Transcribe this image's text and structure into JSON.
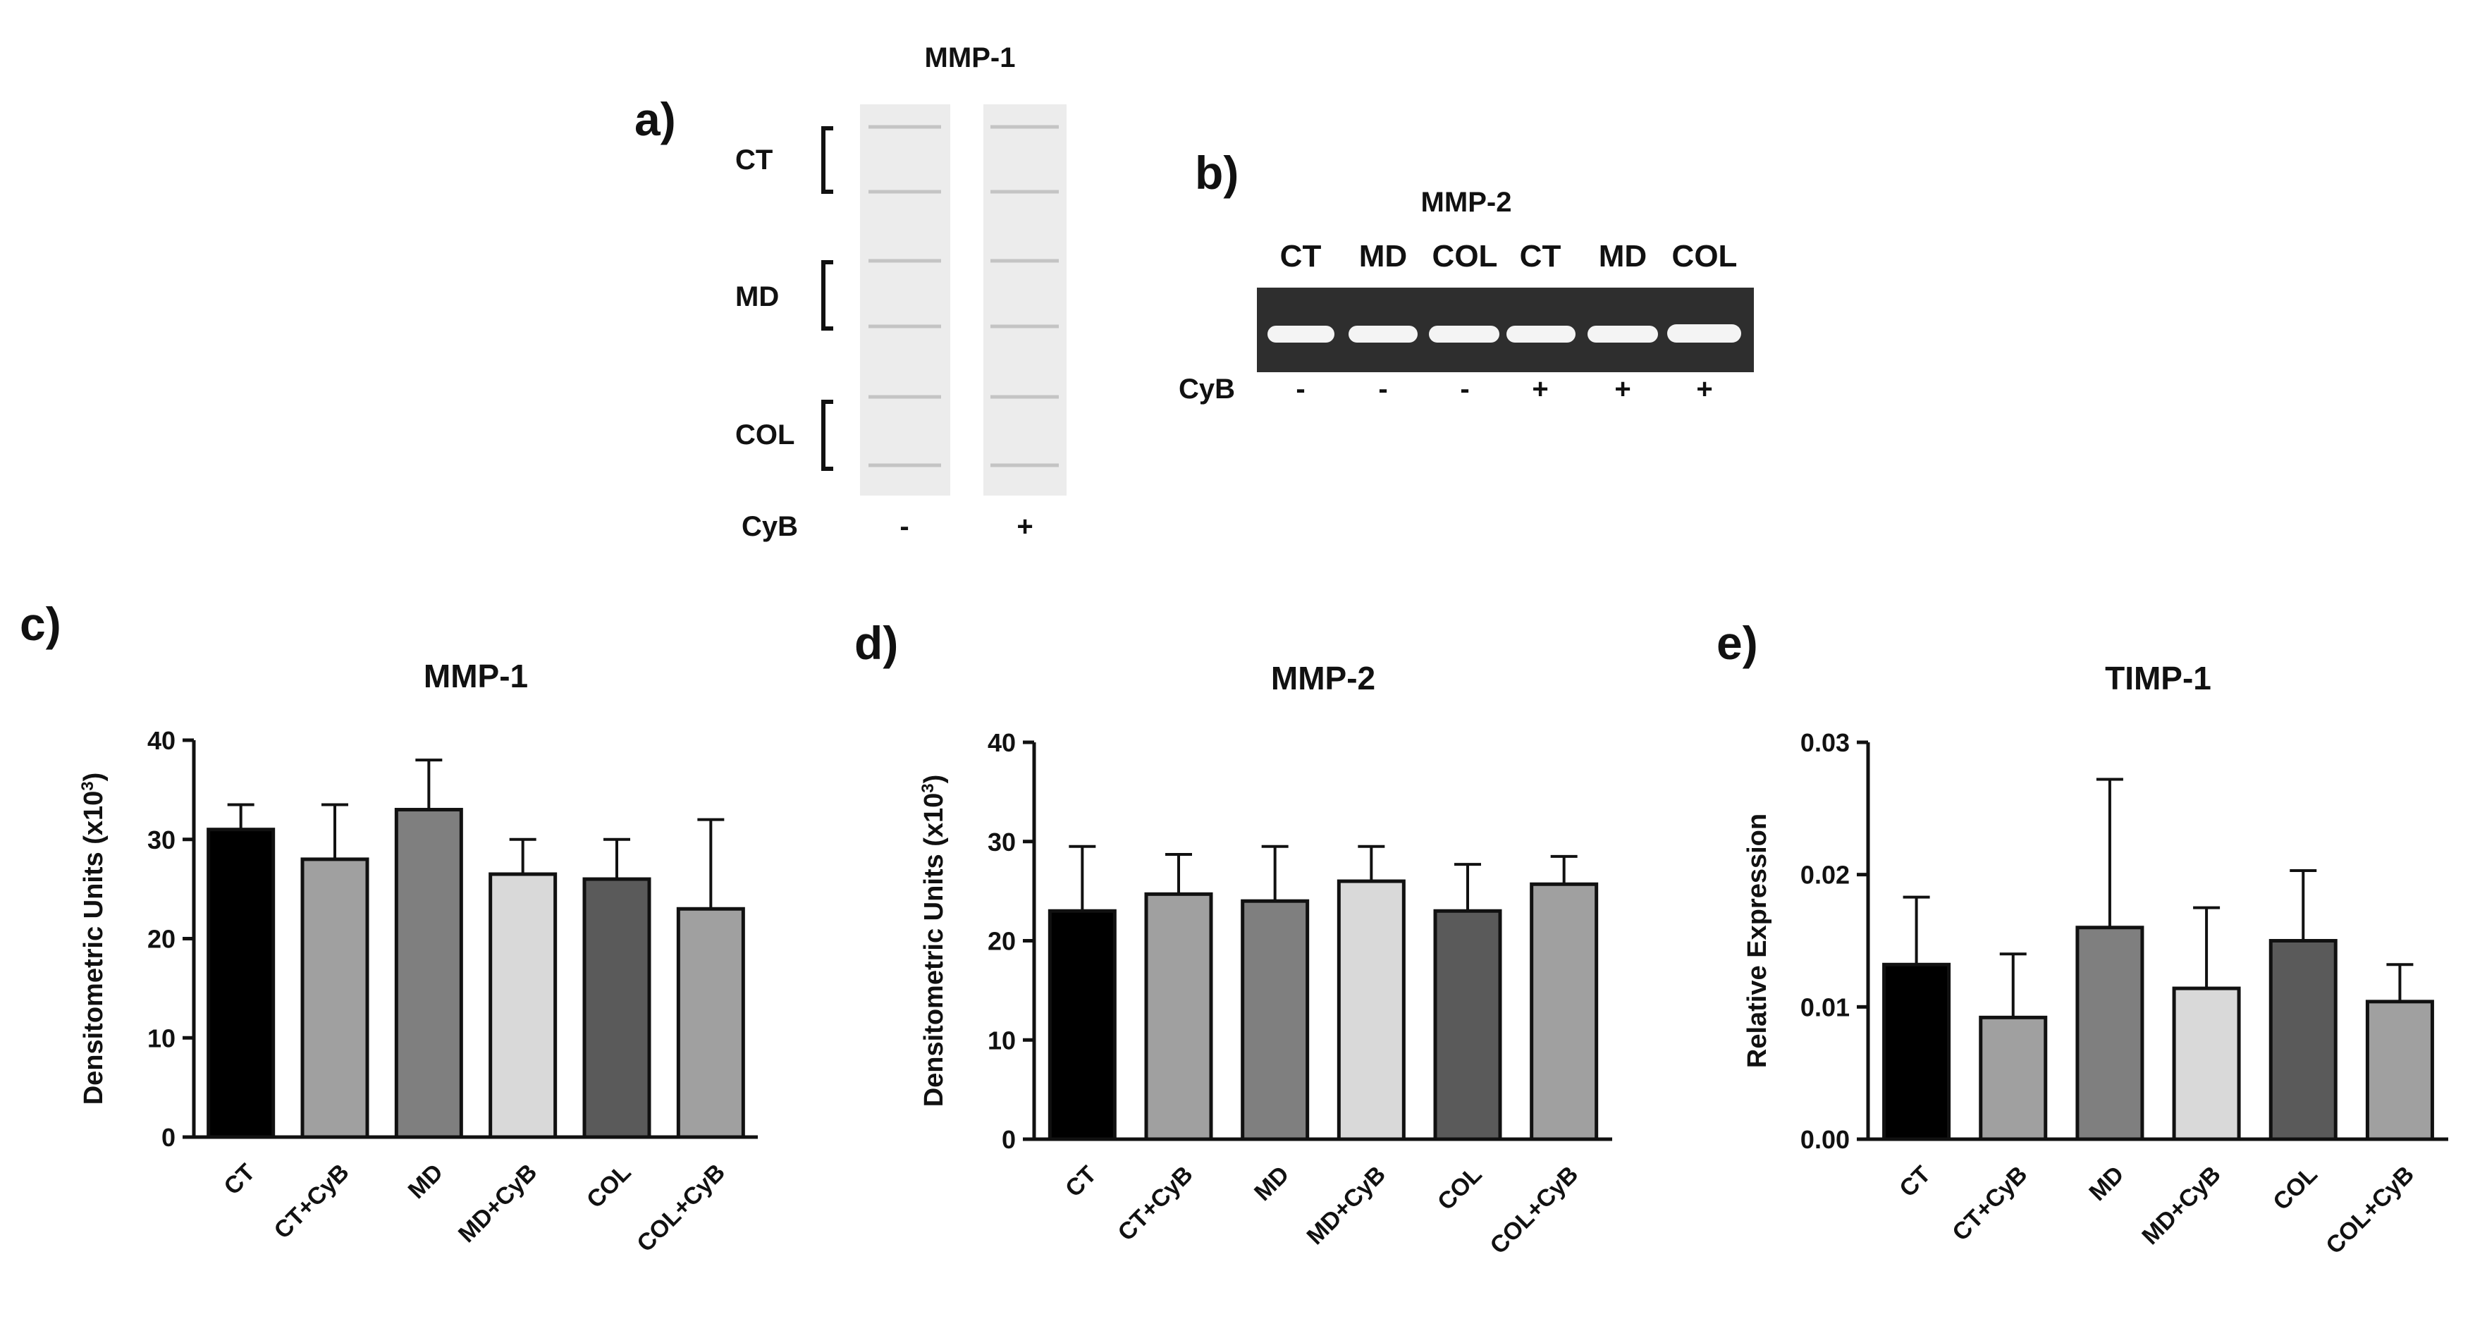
{
  "figure": {
    "panels": {
      "a": "a)",
      "b": "b)",
      "c": "c)",
      "d": "d)",
      "e": "e)"
    }
  },
  "gel_a": {
    "title": "MMP-1",
    "groups": [
      "CT",
      "MD",
      "COL"
    ],
    "cyb_label": "CyB",
    "cyb_values": [
      "-",
      "+"
    ]
  },
  "gel_b": {
    "title": "MMP-2",
    "lanes": [
      "CT",
      "MD",
      "COL",
      "CT",
      "MD",
      "COL"
    ],
    "cyb_label": "CyB",
    "cyb_values": [
      "-",
      "-",
      "-",
      "+",
      "+",
      "+"
    ]
  },
  "chart_data": [
    {
      "type": "bar",
      "title": "MMP-1",
      "categories": [
        "CT",
        "CT+CyB",
        "MD",
        "MD+CyB",
        "COL",
        "COL+CyB"
      ],
      "values": [
        31,
        28,
        33,
        26.5,
        26,
        23
      ],
      "errors": [
        2.5,
        5.5,
        5,
        3.5,
        4,
        9
      ],
      "ylabel_main": "Densitometric Units (x10",
      "ylabel_sup": "3",
      "ylabel_end": ")",
      "ylim": [
        0,
        40
      ],
      "ticks": [
        "0",
        "10",
        "20",
        "30",
        "40"
      ],
      "colors": [
        "#000000",
        "#a0a0a0",
        "#7f7f7f",
        "#d9d9d9",
        "#5a5a5a",
        "#a0a0a0"
      ]
    },
    {
      "type": "bar",
      "title": "MMP-2",
      "categories": [
        "CT",
        "CT+CyB",
        "MD",
        "MD+CyB",
        "COL",
        "COL+CyB"
      ],
      "values": [
        23,
        24.7,
        24,
        26,
        23,
        25.7
      ],
      "errors": [
        6.5,
        4,
        5.5,
        3.5,
        4.7,
        2.8
      ],
      "ylabel_main": "Densitometric Units (x10",
      "ylabel_sup": "3",
      "ylabel_end": ")",
      "ylim": [
        0,
        40
      ],
      "ticks": [
        "0",
        "10",
        "20",
        "30",
        "40"
      ],
      "colors": [
        "#000000",
        "#a0a0a0",
        "#7f7f7f",
        "#d9d9d9",
        "#5a5a5a",
        "#a0a0a0"
      ]
    },
    {
      "type": "bar",
      "title": "TIMP-1",
      "categories": [
        "CT",
        "CT+CyB",
        "MD",
        "MD+CyB",
        "COL",
        "COL+CyB"
      ],
      "values": [
        0.0132,
        0.0092,
        0.016,
        0.0114,
        0.015,
        0.0104
      ],
      "errors": [
        0.0051,
        0.0048,
        0.0112,
        0.0061,
        0.0053,
        0.0028
      ],
      "ylabel_main": "Relative Expression",
      "ylabel_sup": "",
      "ylabel_end": "",
      "ylim": [
        0,
        0.03
      ],
      "ticks": [
        "0.00",
        "0.01",
        "0.02",
        "0.03"
      ],
      "colors": [
        "#000000",
        "#a0a0a0",
        "#7f7f7f",
        "#d9d9d9",
        "#5a5a5a",
        "#a0a0a0"
      ]
    }
  ]
}
